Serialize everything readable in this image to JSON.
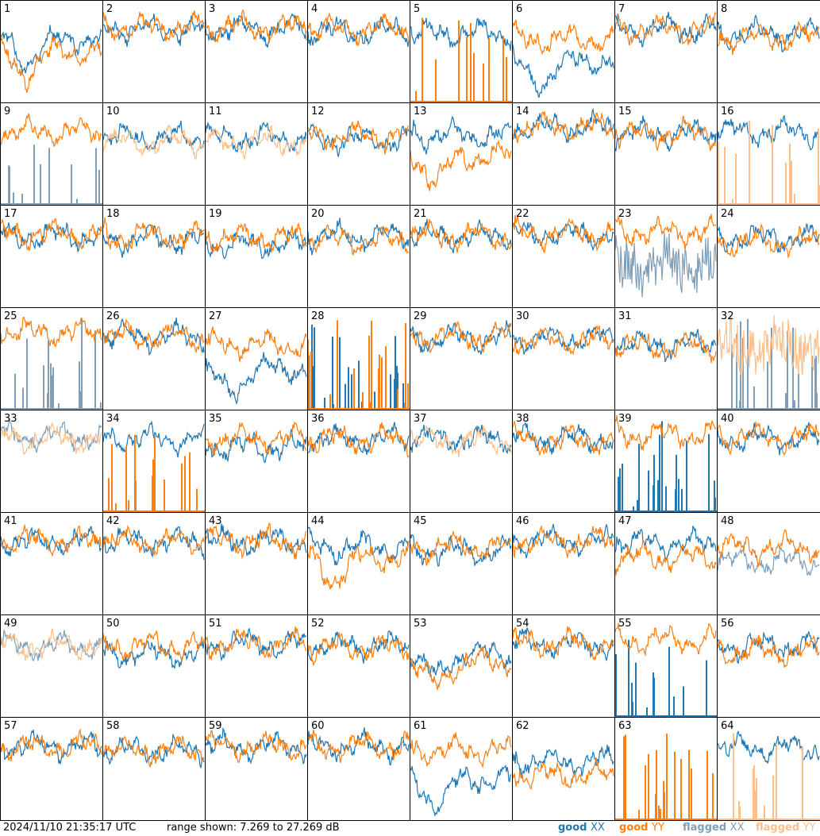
{
  "footer": {
    "timestamp": "2024/11/10 21:35:17 UTC",
    "range_text": "range shown: 7.269 to 27.269 dB"
  },
  "legend": [
    {
      "status": "good",
      "pol": "XX",
      "color": "#1f77b4"
    },
    {
      "status": "good",
      "pol": "YY",
      "color": "#ff7f0e"
    },
    {
      "status": "flagged",
      "pol": "XX",
      "color": "#7f9fb8"
    },
    {
      "status": "flagged",
      "pol": "YY",
      "color": "#ffbf8a"
    }
  ],
  "chart_data": {
    "type": "line",
    "ylim": [
      7.269,
      27.269
    ],
    "units": "dB",
    "colors": {
      "good_xx": "#1f77b4",
      "good_yy": "#ff7f0e",
      "flagged_xx": "#7f9fb8",
      "flagged_yy": "#ffbf8a"
    },
    "panels": [
      {
        "id": "1",
        "xx": "good",
        "yy": "good",
        "xx_level": 0.62,
        "yy_level": 0.5,
        "xx_shape": "dip",
        "yy_shape": "dip"
      },
      {
        "id": "2",
        "xx": "good",
        "yy": "good",
        "xx_level": 0.72,
        "yy_level": 0.74,
        "xx_shape": "normal",
        "yy_shape": "normal"
      },
      {
        "id": "3",
        "xx": "good",
        "yy": "good",
        "xx_level": 0.72,
        "yy_level": 0.74,
        "xx_shape": "normal",
        "yy_shape": "normal"
      },
      {
        "id": "4",
        "xx": "good",
        "yy": "good",
        "xx_level": 0.7,
        "yy_level": 0.72,
        "xx_shape": "normal",
        "yy_shape": "normal"
      },
      {
        "id": "5",
        "xx": "good",
        "yy": "good",
        "xx_level": 0.68,
        "yy_level": 0.0,
        "xx_shape": "normal",
        "yy_shape": "spikes"
      },
      {
        "id": "6",
        "xx": "good",
        "yy": "good",
        "xx_level": 0.4,
        "yy_level": 0.62,
        "xx_shape": "dip",
        "yy_shape": "normal"
      },
      {
        "id": "7",
        "xx": "good",
        "yy": "good",
        "xx_level": 0.72,
        "yy_level": 0.72,
        "xx_shape": "normal",
        "yy_shape": "normal"
      },
      {
        "id": "8",
        "xx": "good",
        "yy": "good",
        "xx_level": 0.68,
        "yy_level": 0.64,
        "xx_shape": "normal",
        "yy_shape": "normal"
      },
      {
        "id": "9",
        "xx": "flagged",
        "yy": "good",
        "xx_level": 0.0,
        "yy_level": 0.72,
        "xx_shape": "spikes",
        "yy_shape": "normal"
      },
      {
        "id": "10",
        "xx": "good",
        "yy": "flagged",
        "xx_level": 0.66,
        "yy_level": 0.62,
        "xx_shape": "normal",
        "yy_shape": "normal"
      },
      {
        "id": "11",
        "xx": "good",
        "yy": "flagged",
        "xx_level": 0.66,
        "yy_level": 0.62,
        "xx_shape": "normal",
        "yy_shape": "normal"
      },
      {
        "id": "12",
        "xx": "good",
        "yy": "good",
        "xx_level": 0.64,
        "yy_level": 0.68,
        "xx_shape": "normal",
        "yy_shape": "normal"
      },
      {
        "id": "13",
        "xx": "good",
        "yy": "good",
        "xx_level": 0.68,
        "yy_level": 0.48,
        "xx_shape": "normal",
        "yy_shape": "dip"
      },
      {
        "id": "14",
        "xx": "good",
        "yy": "good",
        "xx_level": 0.76,
        "yy_level": 0.76,
        "xx_shape": "normal",
        "yy_shape": "normal"
      },
      {
        "id": "15",
        "xx": "good",
        "yy": "good",
        "xx_level": 0.7,
        "yy_level": 0.7,
        "xx_shape": "normal",
        "yy_shape": "normal"
      },
      {
        "id": "16",
        "xx": "good",
        "yy": "flagged",
        "xx_level": 0.72,
        "yy_level": 0.0,
        "xx_shape": "normal",
        "yy_shape": "spikes"
      },
      {
        "id": "17",
        "xx": "good",
        "yy": "good",
        "xx_level": 0.7,
        "yy_level": 0.72,
        "xx_shape": "normal",
        "yy_shape": "normal"
      },
      {
        "id": "18",
        "xx": "good",
        "yy": "good",
        "xx_level": 0.66,
        "yy_level": 0.7,
        "xx_shape": "normal",
        "yy_shape": "normal"
      },
      {
        "id": "19",
        "xx": "good",
        "yy": "good",
        "xx_level": 0.62,
        "yy_level": 0.68,
        "xx_shape": "normal",
        "yy_shape": "normal"
      },
      {
        "id": "20",
        "xx": "good",
        "yy": "good",
        "xx_level": 0.7,
        "yy_level": 0.66,
        "xx_shape": "normal",
        "yy_shape": "normal"
      },
      {
        "id": "21",
        "xx": "good",
        "yy": "good",
        "xx_level": 0.7,
        "yy_level": 0.7,
        "xx_shape": "normal",
        "yy_shape": "normal"
      },
      {
        "id": "22",
        "xx": "good",
        "yy": "good",
        "xx_level": 0.72,
        "yy_level": 0.72,
        "xx_shape": "normal",
        "yy_shape": "normal"
      },
      {
        "id": "23",
        "xx": "flagged",
        "yy": "good",
        "xx_level": 0.42,
        "yy_level": 0.74,
        "xx_shape": "noisy",
        "yy_shape": "normal"
      },
      {
        "id": "24",
        "xx": "good",
        "yy": "good",
        "xx_level": 0.68,
        "yy_level": 0.64,
        "xx_shape": "normal",
        "yy_shape": "normal"
      },
      {
        "id": "25",
        "xx": "flagged",
        "yy": "good",
        "xx_level": 0.0,
        "yy_level": 0.76,
        "xx_shape": "spikes",
        "yy_shape": "normal"
      },
      {
        "id": "26",
        "xx": "good",
        "yy": "good",
        "xx_level": 0.72,
        "yy_level": 0.72,
        "xx_shape": "normal",
        "yy_shape": "normal"
      },
      {
        "id": "27",
        "xx": "good",
        "yy": "good",
        "xx_level": 0.4,
        "yy_level": 0.64,
        "xx_shape": "dip",
        "yy_shape": "normal"
      },
      {
        "id": "28",
        "xx": "good",
        "yy": "good",
        "xx_level": 0.0,
        "yy_level": 0.0,
        "xx_shape": "spikes",
        "yy_shape": "spikes"
      },
      {
        "id": "29",
        "xx": "good",
        "yy": "good",
        "xx_level": 0.7,
        "yy_level": 0.72,
        "xx_shape": "normal",
        "yy_shape": "normal"
      },
      {
        "id": "30",
        "xx": "good",
        "yy": "good",
        "xx_level": 0.7,
        "yy_level": 0.68,
        "xx_shape": "normal",
        "yy_shape": "normal"
      },
      {
        "id": "31",
        "xx": "good",
        "yy": "good",
        "xx_level": 0.64,
        "yy_level": 0.62,
        "xx_shape": "normal",
        "yy_shape": "normal"
      },
      {
        "id": "32",
        "xx": "flagged",
        "yy": "flagged",
        "xx_level": 0.0,
        "yy_level": 0.62,
        "xx_shape": "spikes",
        "yy_shape": "noisy"
      },
      {
        "id": "33",
        "xx": "flagged",
        "yy": "flagged",
        "xx_level": 0.74,
        "yy_level": 0.72,
        "xx_shape": "normal",
        "yy_shape": "normal"
      },
      {
        "id": "34",
        "xx": "good",
        "yy": "good",
        "xx_level": 0.72,
        "yy_level": 0.0,
        "xx_shape": "normal",
        "yy_shape": "spikes"
      },
      {
        "id": "35",
        "xx": "good",
        "yy": "good",
        "xx_level": 0.64,
        "yy_level": 0.72,
        "xx_shape": "normal",
        "yy_shape": "normal"
      },
      {
        "id": "36",
        "xx": "good",
        "yy": "good",
        "xx_level": 0.72,
        "yy_level": 0.72,
        "xx_shape": "normal",
        "yy_shape": "normal"
      },
      {
        "id": "37",
        "xx": "good",
        "yy": "flagged",
        "xx_level": 0.72,
        "yy_level": 0.7,
        "xx_shape": "normal",
        "yy_shape": "normal"
      },
      {
        "id": "38",
        "xx": "good",
        "yy": "good",
        "xx_level": 0.72,
        "yy_level": 0.7,
        "xx_shape": "normal",
        "yy_shape": "normal"
      },
      {
        "id": "39",
        "xx": "good",
        "yy": "good",
        "xx_level": 0.0,
        "yy_level": 0.76,
        "xx_shape": "spikes",
        "yy_shape": "normal"
      },
      {
        "id": "40",
        "xx": "good",
        "yy": "good",
        "xx_level": 0.72,
        "yy_level": 0.74,
        "xx_shape": "normal",
        "yy_shape": "normal"
      },
      {
        "id": "41",
        "xx": "good",
        "yy": "good",
        "xx_level": 0.72,
        "yy_level": 0.72,
        "xx_shape": "normal",
        "yy_shape": "normal"
      },
      {
        "id": "42",
        "xx": "good",
        "yy": "good",
        "xx_level": 0.72,
        "yy_level": 0.72,
        "xx_shape": "normal",
        "yy_shape": "normal"
      },
      {
        "id": "43",
        "xx": "good",
        "yy": "good",
        "xx_level": 0.72,
        "yy_level": 0.72,
        "xx_shape": "normal",
        "yy_shape": "normal"
      },
      {
        "id": "44",
        "xx": "good",
        "yy": "good",
        "xx_level": 0.66,
        "yy_level": 0.56,
        "xx_shape": "normal",
        "yy_shape": "dip"
      },
      {
        "id": "45",
        "xx": "good",
        "yy": "good",
        "xx_level": 0.62,
        "yy_level": 0.66,
        "xx_shape": "normal",
        "yy_shape": "normal"
      },
      {
        "id": "46",
        "xx": "good",
        "yy": "good",
        "xx_level": 0.72,
        "yy_level": 0.72,
        "xx_shape": "normal",
        "yy_shape": "normal"
      },
      {
        "id": "47",
        "xx": "good",
        "yy": "good",
        "xx_level": 0.7,
        "yy_level": 0.56,
        "xx_shape": "normal",
        "yy_shape": "normal"
      },
      {
        "id": "48",
        "xx": "flagged",
        "yy": "good",
        "xx_level": 0.52,
        "yy_level": 0.66,
        "xx_shape": "normal",
        "yy_shape": "normal"
      },
      {
        "id": "49",
        "xx": "flagged",
        "yy": "flagged",
        "xx_level": 0.7,
        "yy_level": 0.7,
        "xx_shape": "normal",
        "yy_shape": "normal"
      },
      {
        "id": "50",
        "xx": "good",
        "yy": "good",
        "xx_level": 0.62,
        "yy_level": 0.7,
        "xx_shape": "normal",
        "yy_shape": "normal"
      },
      {
        "id": "51",
        "xx": "good",
        "yy": "good",
        "xx_level": 0.72,
        "yy_level": 0.72,
        "xx_shape": "normal",
        "yy_shape": "normal"
      },
      {
        "id": "52",
        "xx": "good",
        "yy": "good",
        "xx_level": 0.7,
        "yy_level": 0.68,
        "xx_shape": "normal",
        "yy_shape": "normal"
      },
      {
        "id": "53",
        "xx": "good",
        "yy": "good",
        "xx_level": 0.62,
        "yy_level": 0.54,
        "xx_shape": "dip",
        "yy_shape": "dip"
      },
      {
        "id": "54",
        "xx": "good",
        "yy": "good",
        "xx_level": 0.72,
        "yy_level": 0.72,
        "xx_shape": "normal",
        "yy_shape": "normal"
      },
      {
        "id": "55",
        "xx": "good",
        "yy": "good",
        "xx_level": 0.0,
        "yy_level": 0.76,
        "xx_shape": "spikes",
        "yy_shape": "normal"
      },
      {
        "id": "56",
        "xx": "good",
        "yy": "good",
        "xx_level": 0.7,
        "yy_level": 0.64,
        "xx_shape": "normal",
        "yy_shape": "normal"
      },
      {
        "id": "57",
        "xx": "good",
        "yy": "good",
        "xx_level": 0.72,
        "yy_level": 0.72,
        "xx_shape": "normal",
        "yy_shape": "normal"
      },
      {
        "id": "58",
        "xx": "good",
        "yy": "good",
        "xx_level": 0.68,
        "yy_level": 0.68,
        "xx_shape": "normal",
        "yy_shape": "normal"
      },
      {
        "id": "59",
        "xx": "good",
        "yy": "good",
        "xx_level": 0.72,
        "yy_level": 0.72,
        "xx_shape": "normal",
        "yy_shape": "normal"
      },
      {
        "id": "60",
        "xx": "good",
        "yy": "good",
        "xx_level": 0.72,
        "yy_level": 0.72,
        "xx_shape": "normal",
        "yy_shape": "normal"
      },
      {
        "id": "61",
        "xx": "good",
        "yy": "good",
        "xx_level": 0.4,
        "yy_level": 0.68,
        "xx_shape": "dip",
        "yy_shape": "normal"
      },
      {
        "id": "62",
        "xx": "good",
        "yy": "good",
        "xx_level": 0.58,
        "yy_level": 0.44,
        "xx_shape": "normal",
        "yy_shape": "normal"
      },
      {
        "id": "63",
        "xx": "good",
        "yy": "good",
        "xx_level": 0.0,
        "yy_level": 0.0,
        "xx_shape": "flat",
        "yy_shape": "spikes"
      },
      {
        "id": "64",
        "xx": "good",
        "yy": "flagged",
        "xx_level": 0.7,
        "yy_level": 0.0,
        "xx_shape": "normal",
        "yy_shape": "spikes"
      }
    ]
  }
}
